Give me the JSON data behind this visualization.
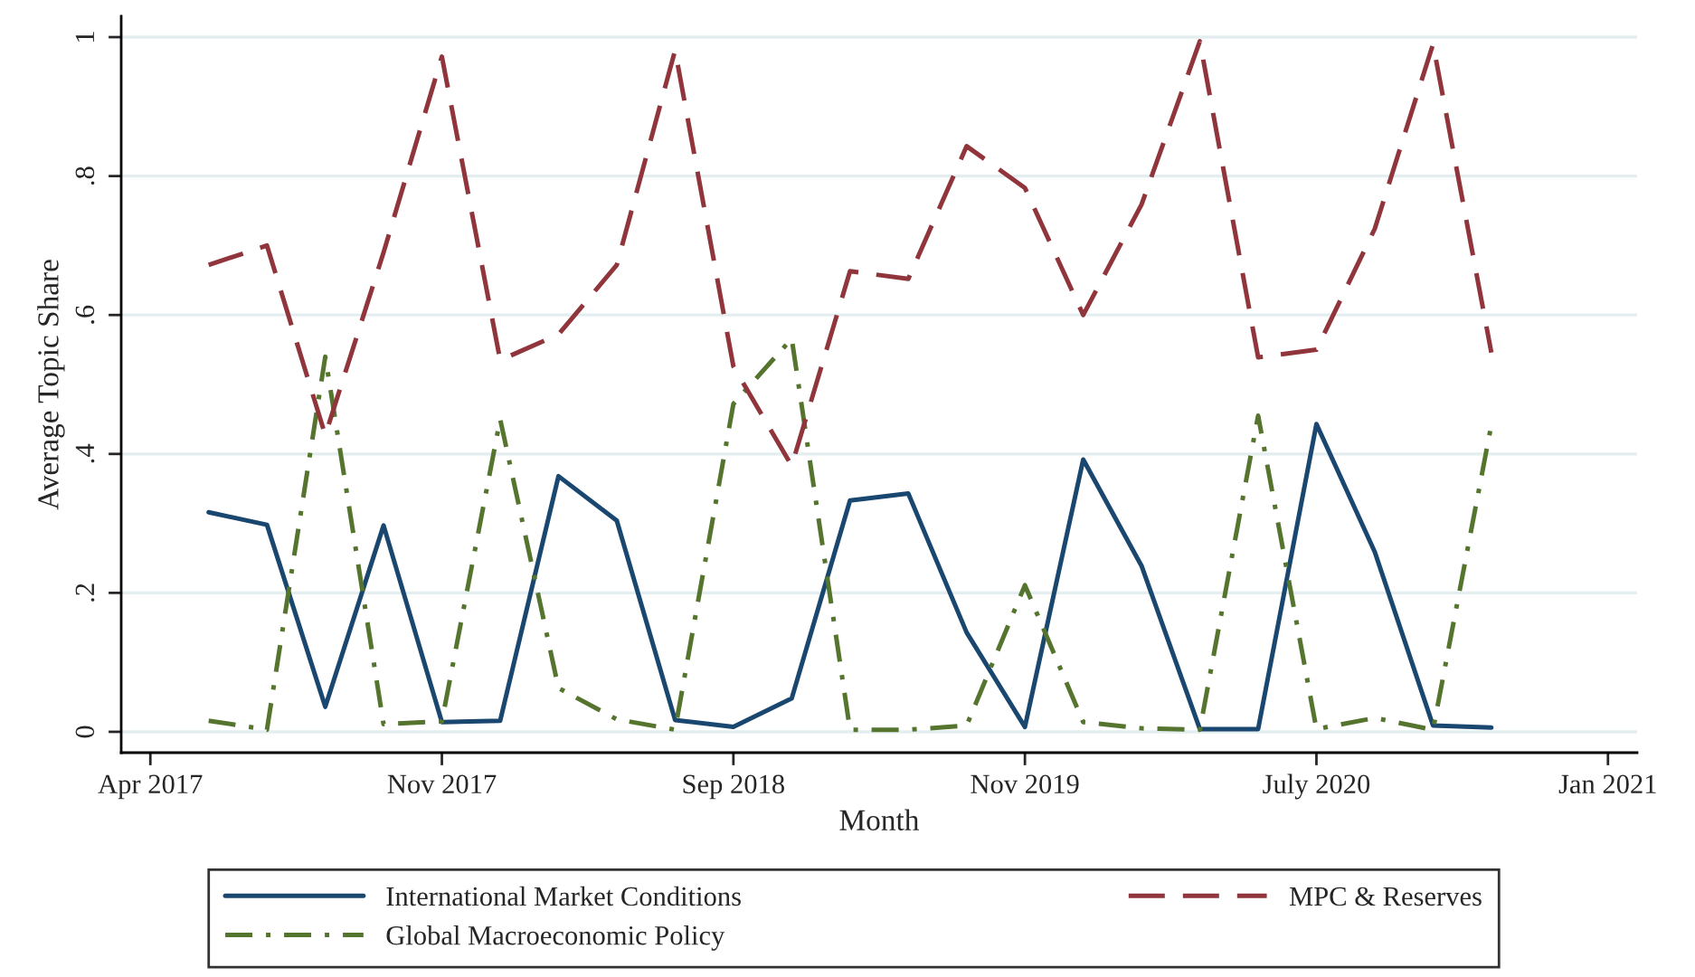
{
  "chart_data": {
    "type": "line",
    "xlabel": "Month",
    "ylabel": "Average Topic Share",
    "categories": [
      "Apr 2017",
      null,
      null,
      null,
      null,
      "Nov 2017",
      null,
      null,
      null,
      null,
      "Sep 2018",
      null,
      null,
      null,
      null,
      "Nov 2019",
      null,
      null,
      null,
      null,
      "July 2020",
      null,
      null,
      null,
      null,
      "Jan 2021"
    ],
    "series": [
      {
        "name": "International Market Conditions",
        "color": "#1a476f",
        "line_style": "solid",
        "values": [
          null,
          0.316,
          0.298,
          0.036,
          0.297,
          0.014,
          0.016,
          0.368,
          0.304,
          0.017,
          0.007,
          0.048,
          0.333,
          0.343,
          0.143,
          0.007,
          0.392,
          0.239,
          0.004,
          0.004,
          0.443,
          0.259,
          0.009,
          0.006,
          null,
          null
        ]
      },
      {
        "name": "Global Macroeconomic Policy",
        "color": "#55752f",
        "line_style": "dashdot",
        "values": [
          null,
          0.016,
          0.003,
          0.54,
          0.011,
          0.015,
          0.45,
          0.063,
          0.018,
          0.003,
          0.472,
          0.566,
          0.003,
          0.003,
          0.009,
          0.211,
          0.014,
          0.005,
          0.003,
          0.455,
          0.004,
          0.02,
          0.003,
          0.442,
          null,
          null
        ]
      },
      {
        "name": "MPC & Reserves",
        "color": "#90353b",
        "line_style": "dashed",
        "values": [
          null,
          0.672,
          0.7,
          0.427,
          0.69,
          0.972,
          0.535,
          0.572,
          0.672,
          0.981,
          0.526,
          0.383,
          0.663,
          0.652,
          0.843,
          0.783,
          0.6,
          0.759,
          0.994,
          0.539,
          0.55,
          0.724,
          0.99,
          0.546,
          null,
          null
        ]
      }
    ],
    "ylim": [
      -0.03,
      1.03
    ],
    "yticks": [
      {
        "value": 0,
        "label": "0"
      },
      {
        "value": 0.2,
        "label": ".2"
      },
      {
        "value": 0.4,
        "label": ".4"
      },
      {
        "value": 0.6,
        "label": ".6"
      },
      {
        "value": 0.8,
        "label": ".8"
      },
      {
        "value": 1,
        "label": "1"
      }
    ],
    "grid": "y",
    "legend": "bottom",
    "marker": "none"
  }
}
